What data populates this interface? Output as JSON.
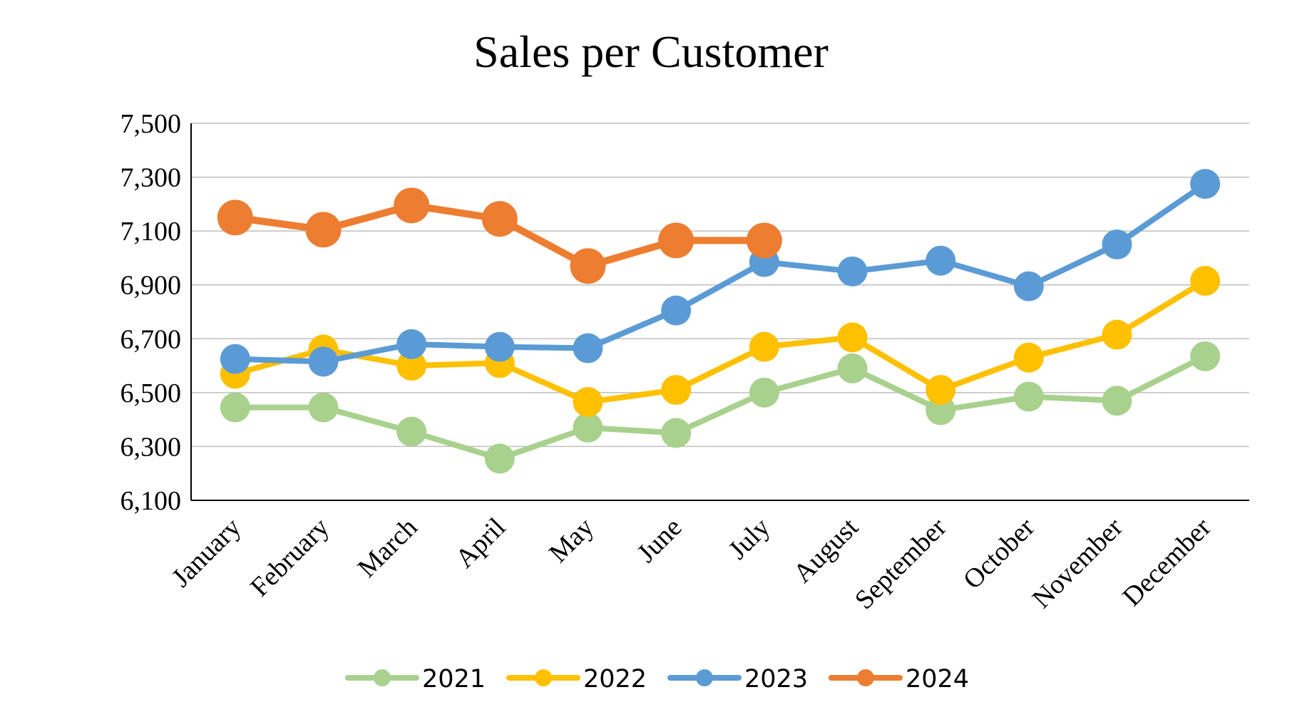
{
  "chart_data": {
    "type": "line",
    "title": "Sales per Customer",
    "xlabel": "",
    "ylabel": "",
    "categories": [
      "January",
      "February",
      "March",
      "April",
      "May",
      "June",
      "July",
      "August",
      "September",
      "October",
      "November",
      "December"
    ],
    "y_ticks": [
      "6,100",
      "6,300",
      "6,500",
      "6,700",
      "6,900",
      "7,100",
      "7,300",
      "7,500"
    ],
    "y_tick_values": [
      6100,
      6300,
      6500,
      6700,
      6900,
      7100,
      7300,
      7500
    ],
    "ylim": [
      6100,
      7500
    ],
    "grid": "horizontal",
    "legend_position": "bottom",
    "series": [
      {
        "name": "2021",
        "color": "#A9D18E",
        "values": [
          6445,
          6445,
          6355,
          6255,
          6370,
          6350,
          6500,
          6590,
          6435,
          6485,
          6470,
          6635
        ]
      },
      {
        "name": "2022",
        "color": "#FFC000",
        "values": [
          6570,
          6660,
          6600,
          6610,
          6465,
          6510,
          6670,
          6705,
          6510,
          6630,
          6715,
          6915
        ]
      },
      {
        "name": "2023",
        "color": "#5B9BD5",
        "values": [
          6625,
          6615,
          6680,
          6670,
          6665,
          6805,
          6985,
          6950,
          6990,
          6895,
          7050,
          7275
        ]
      },
      {
        "name": "2024",
        "color": "#ED7D31",
        "values": [
          7150,
          7105,
          7195,
          7145,
          6970,
          7065,
          7065,
          null,
          null,
          null,
          null,
          null
        ]
      }
    ]
  }
}
